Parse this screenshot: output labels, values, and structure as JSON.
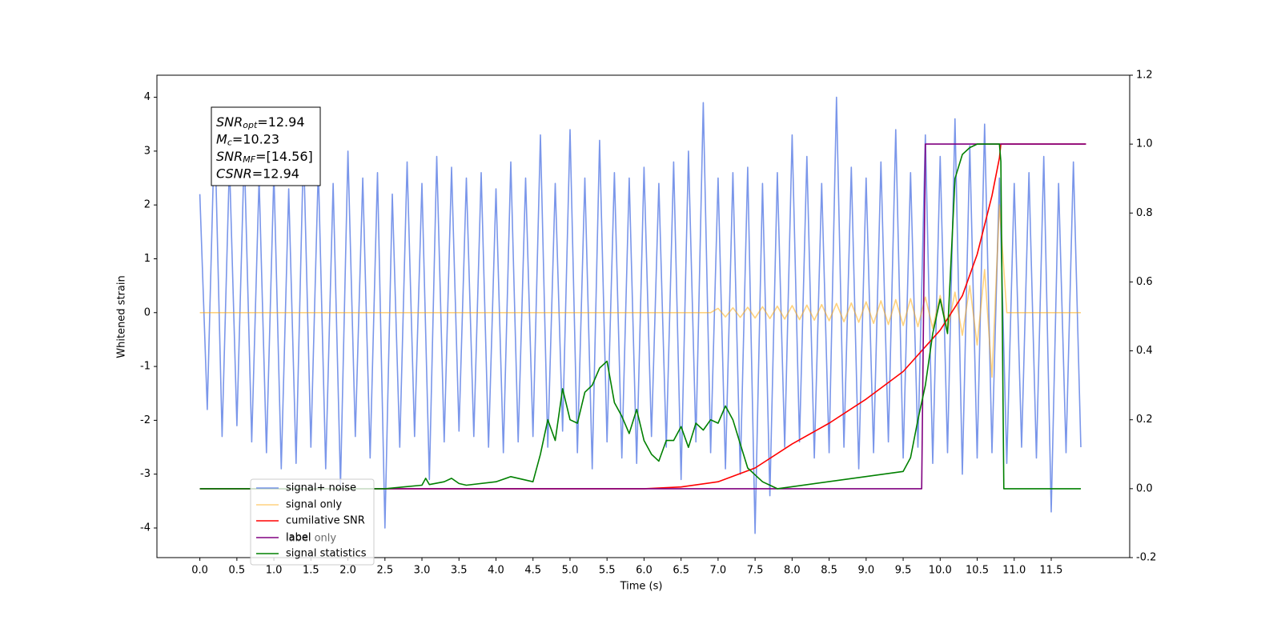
{
  "chart_data": {
    "type": "line",
    "xlabel": "Time (s)",
    "ylabel": "Whitened strain",
    "xlim": [
      -0.58,
      12.56
    ],
    "ylim": [
      -4.55,
      4.41
    ],
    "y2lim": [
      -0.2,
      1.2
    ],
    "xticks": [
      {
        "value": 0,
        "label": "0.0"
      },
      0.5,
      {
        "value": 1,
        "label": "1.0"
      },
      1.5,
      {
        "value": 2,
        "label": "2.0"
      },
      2.5,
      {
        "value": 3,
        "label": "3.0"
      },
      3.5,
      {
        "value": 4,
        "label": "4.0"
      },
      4.5,
      {
        "value": 5,
        "label": "5.0"
      },
      5.5,
      {
        "value": 6,
        "label": "6.0"
      },
      6.5,
      {
        "value": 7,
        "label": "7.0"
      },
      7.5,
      {
        "value": 8,
        "label": "8.0"
      },
      8.5,
      {
        "value": 9,
        "label": "9.0"
      },
      9.5,
      {
        "value": 10,
        "label": "10.0"
      },
      10.5,
      {
        "value": 11,
        "label": "11.0"
      },
      11.5
    ],
    "yticks": [
      -4,
      -3,
      -2,
      -1,
      0,
      1,
      2,
      3,
      4
    ],
    "y2ticks": [
      -0.2,
      {
        "value": 0,
        "label": "0.0"
      },
      0.2,
      0.4,
      0.6,
      0.8,
      {
        "value": 1,
        "label": "1.0"
      },
      1.2
    ],
    "grid": false,
    "legend": "lower left",
    "annotations": [
      {
        "symbol": "SNR",
        "subscript": "opt",
        "text": "=12.94"
      },
      {
        "symbol": "M",
        "subscript": "c",
        "text": "=10.23"
      },
      {
        "symbol": "SNR",
        "subscript": "MF",
        "text": "=[14.56]"
      },
      {
        "symbol": "CSNR",
        "subscript": "",
        "text": "=12.94"
      }
    ],
    "hidden_legend_text": "label only",
    "series": [
      {
        "name": "signal+ noise",
        "color": "#4169e1",
        "alpha": 0.7,
        "axis": "y",
        "x": [
          0.0,
          0.1,
          0.2,
          0.3,
          0.4,
          0.5,
          0.6,
          0.7,
          0.8,
          0.9,
          1.0,
          1.1,
          1.2,
          1.3,
          1.4,
          1.5,
          1.6,
          1.7,
          1.8,
          1.9,
          2.0,
          2.1,
          2.2,
          2.3,
          2.4,
          2.5,
          2.6,
          2.7,
          2.8,
          2.9,
          3.0,
          3.1,
          3.2,
          3.3,
          3.4,
          3.5,
          3.6,
          3.7,
          3.8,
          3.9,
          4.0,
          4.1,
          4.2,
          4.3,
          4.4,
          4.5,
          4.6,
          4.7,
          4.8,
          4.9,
          5.0,
          5.1,
          5.2,
          5.3,
          5.4,
          5.5,
          5.6,
          5.7,
          5.8,
          5.9,
          6.0,
          6.1,
          6.2,
          6.3,
          6.4,
          6.5,
          6.6,
          6.7,
          6.8,
          6.9,
          7.0,
          7.1,
          7.2,
          7.3,
          7.4,
          7.5,
          7.6,
          7.7,
          7.8,
          7.9,
          8.0,
          8.1,
          8.2,
          8.3,
          8.4,
          8.5,
          8.6,
          8.7,
          8.8,
          8.9,
          9.0,
          9.1,
          9.2,
          9.3,
          9.4,
          9.5,
          9.6,
          9.7,
          9.8,
          9.9,
          10.0,
          10.1,
          10.2,
          10.3,
          10.4,
          10.5,
          10.6,
          10.7,
          10.8,
          10.9,
          11.0,
          11.1,
          11.2,
          11.3,
          11.4,
          11.5,
          11.6,
          11.7,
          11.8,
          11.9
        ],
        "values": [
          2.2,
          -1.8,
          3.5,
          -2.3,
          2.8,
          -2.1,
          3.0,
          -2.4,
          2.5,
          -2.6,
          2.6,
          -2.9,
          2.3,
          -2.8,
          3.1,
          -2.5,
          2.7,
          -2.9,
          2.4,
          -3.2,
          3.0,
          -2.3,
          2.5,
          -2.7,
          2.6,
          -4.0,
          2.2,
          -2.5,
          2.8,
          -2.3,
          2.4,
          -3.1,
          2.9,
          -2.4,
          2.7,
          -2.2,
          2.5,
          -2.3,
          2.6,
          -2.5,
          2.3,
          -2.6,
          2.8,
          -2.4,
          2.5,
          -2.3,
          3.3,
          -2.5,
          2.4,
          -2.2,
          3.4,
          -2.6,
          2.5,
          -2.9,
          3.2,
          -2.4,
          2.6,
          -2.7,
          2.5,
          -2.8,
          2.7,
          -2.3,
          2.4,
          -2.5,
          2.8,
          -3.1,
          3.0,
          -2.4,
          3.9,
          -2.6,
          2.5,
          -2.9,
          2.6,
          -3.0,
          2.7,
          -4.1,
          2.4,
          -3.4,
          2.6,
          -2.5,
          3.3,
          -2.4,
          2.9,
          -2.7,
          2.4,
          -2.6,
          4.0,
          -2.5,
          2.7,
          -2.9,
          2.5,
          -2.6,
          2.8,
          -2.4,
          3.4,
          -2.7,
          2.6,
          -2.5,
          3.3,
          -2.8,
          2.9,
          -2.6,
          3.6,
          -3.0,
          3.1,
          -2.7,
          3.5,
          -2.6,
          2.5,
          -2.8,
          2.4,
          -2.5,
          2.6,
          -2.7,
          2.9,
          -3.7,
          2.4,
          -2.6,
          2.8,
          -2.5
        ]
      },
      {
        "name": "signal only",
        "color": "#ffa500",
        "alpha": 0.5,
        "axis": "y",
        "x": [
          0.0,
          0.1,
          0.2,
          0.3,
          0.4,
          0.5,
          0.6,
          0.7,
          0.8,
          0.9,
          1.0,
          1.1,
          1.2,
          1.3,
          1.4,
          1.5,
          1.6,
          1.7,
          1.8,
          1.9,
          2.0,
          2.1,
          2.2,
          2.3,
          2.4,
          2.5,
          2.6,
          2.7,
          2.8,
          2.9,
          3.0,
          3.1,
          3.2,
          3.3,
          3.4,
          3.5,
          3.6,
          3.7,
          3.8,
          3.9,
          4.0,
          4.1,
          4.2,
          4.3,
          4.4,
          4.5,
          4.6,
          4.7,
          4.8,
          4.9,
          5.0,
          5.1,
          5.2,
          5.3,
          5.4,
          5.5,
          5.6,
          5.7,
          5.8,
          5.9,
          6.0,
          6.1,
          6.2,
          6.3,
          6.4,
          6.5,
          6.6,
          6.7,
          6.8,
          6.9,
          7.0,
          7.1,
          7.2,
          7.3,
          7.4,
          7.5,
          7.6,
          7.7,
          7.8,
          7.9,
          8.0,
          8.1,
          8.2,
          8.3,
          8.4,
          8.5,
          8.6,
          8.7,
          8.8,
          8.9,
          9.0,
          9.1,
          9.2,
          9.3,
          9.4,
          9.5,
          9.6,
          9.7,
          9.8,
          9.9,
          10.0,
          10.1,
          10.2,
          10.3,
          10.4,
          10.5,
          10.6,
          10.7,
          10.8,
          10.9,
          11.0,
          11.1,
          11.2,
          11.3,
          11.4,
          11.5,
          11.6,
          11.7,
          11.8,
          11.9
        ],
        "values": [
          0,
          0,
          0,
          0,
          0,
          0,
          0,
          0,
          0,
          0,
          0,
          0,
          0,
          0,
          0,
          0,
          0,
          0,
          0,
          0,
          0,
          0,
          0,
          0,
          0,
          0,
          0,
          0,
          0,
          0,
          0,
          0,
          0,
          0,
          0,
          0,
          0,
          0,
          0,
          0,
          0,
          0,
          0,
          0,
          0,
          0,
          0,
          0,
          0,
          0,
          0,
          0,
          0,
          0,
          0,
          0,
          0,
          0,
          0,
          0,
          0,
          0,
          0,
          0,
          0,
          0,
          0,
          0,
          0,
          0,
          0.08,
          -0.08,
          0.09,
          -0.09,
          0.1,
          -0.1,
          0.11,
          -0.11,
          0.12,
          -0.12,
          0.13,
          -0.13,
          0.14,
          -0.14,
          0.15,
          -0.15,
          0.17,
          -0.17,
          0.18,
          -0.18,
          0.2,
          -0.2,
          0.22,
          -0.22,
          0.24,
          -0.24,
          0.26,
          -0.26,
          0.29,
          -0.29,
          0.32,
          -0.33,
          0.38,
          -0.42,
          0.5,
          -0.6,
          0.8,
          -1.2,
          2.0,
          0,
          0,
          0,
          0,
          0,
          0,
          0,
          0,
          0,
          0,
          0
        ]
      },
      {
        "name": "cumilative SNR",
        "color": "#ff0000",
        "alpha": 1,
        "axis": "y2",
        "x": [
          0.0,
          6.0,
          6.5,
          7.0,
          7.5,
          8.0,
          8.5,
          9.0,
          9.5,
          10.0,
          10.3,
          10.5,
          10.7,
          10.8,
          10.82,
          11.97
        ],
        "values": [
          0,
          0,
          0.005,
          0.02,
          0.06,
          0.13,
          0.19,
          0.26,
          0.34,
          0.46,
          0.56,
          0.68,
          0.85,
          0.96,
          1.0,
          1.0
        ]
      },
      {
        "name": "label",
        "color": "#800080",
        "alpha": 1,
        "axis": "y2",
        "x": [
          0.0,
          9.75,
          9.8,
          11.97
        ],
        "values": [
          0,
          0,
          1,
          1
        ]
      },
      {
        "name": "signal statistics",
        "color": "#008000",
        "alpha": 1,
        "axis": "y2",
        "x": [
          0.0,
          2.5,
          3.0,
          3.05,
          3.1,
          3.3,
          3.4,
          3.5,
          3.6,
          4.0,
          4.2,
          4.5,
          4.6,
          4.7,
          4.8,
          4.9,
          5.0,
          5.1,
          5.2,
          5.3,
          5.4,
          5.5,
          5.6,
          5.7,
          5.8,
          5.9,
          6.0,
          6.1,
          6.2,
          6.3,
          6.4,
          6.5,
          6.6,
          6.7,
          6.8,
          6.9,
          7.0,
          7.1,
          7.2,
          7.3,
          7.4,
          7.5,
          7.6,
          7.7,
          7.8,
          9.5,
          9.6,
          9.7,
          9.8,
          9.9,
          10.0,
          10.1,
          10.2,
          10.3,
          10.4,
          10.5,
          10.8,
          10.82,
          10.86,
          11.9
        ],
        "values": [
          0,
          0,
          0.01,
          0.03,
          0.012,
          0.02,
          0.03,
          0.015,
          0.01,
          0.02,
          0.035,
          0.02,
          0.1,
          0.2,
          0.14,
          0.29,
          0.2,
          0.19,
          0.28,
          0.3,
          0.35,
          0.37,
          0.25,
          0.21,
          0.16,
          0.23,
          0.14,
          0.1,
          0.08,
          0.14,
          0.14,
          0.18,
          0.12,
          0.19,
          0.17,
          0.2,
          0.19,
          0.24,
          0.2,
          0.13,
          0.06,
          0.04,
          0.02,
          0.01,
          0,
          0.05,
          0.09,
          0.2,
          0.3,
          0.45,
          0.55,
          0.45,
          0.9,
          0.97,
          0.99,
          1.0,
          1.0,
          0.95,
          0,
          0
        ]
      }
    ]
  }
}
